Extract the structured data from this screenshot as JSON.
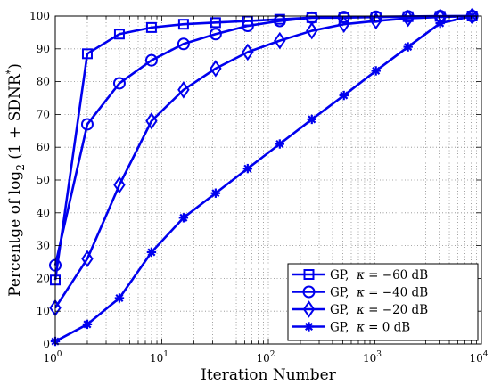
{
  "chart_data": {
    "type": "line",
    "xscale": "log",
    "xlim": [
      1,
      10000
    ],
    "ylim": [
      0,
      100
    ],
    "xlabel": "Iteration Number",
    "ylabel": "Percentge of log2(1 + SDNR*)",
    "ylabel_parts": {
      "prefix": "Percentge of ",
      "log": "log",
      "sub": "2",
      "paren": " (1 + SDNR",
      "star": "*",
      "close": ")"
    },
    "grid": true,
    "grid_style": "dotted",
    "legend_position": "bottom-right",
    "line_color": "#0000ee",
    "x_ticks": [
      {
        "value": 1,
        "base": "10",
        "exp": "0"
      },
      {
        "value": 10,
        "base": "10",
        "exp": "1"
      },
      {
        "value": 100,
        "base": "10",
        "exp": "2"
      },
      {
        "value": 1000,
        "base": "10",
        "exp": "3"
      },
      {
        "value": 10000,
        "base": "10",
        "exp": "4"
      }
    ],
    "y_ticks": [
      "0",
      "10",
      "20",
      "30",
      "40",
      "50",
      "60",
      "70",
      "80",
      "90",
      "100"
    ],
    "x": [
      1,
      2,
      4,
      8,
      16,
      32,
      64,
      128,
      256,
      512,
      1024,
      2048,
      4096,
      8192
    ],
    "series": [
      {
        "name": "GP, κ = −60 dB",
        "legend": {
          "label": "GP,",
          "kappa": "κ",
          "eq": " = −60 dB"
        },
        "marker": "square",
        "values": [
          19.5,
          88.5,
          94.5,
          96.5,
          97.5,
          98,
          98.5,
          99,
          99.5,
          99.5,
          99.7,
          99.8,
          99.9,
          100
        ]
      },
      {
        "name": "GP, κ = −40 dB",
        "legend": {
          "label": "GP,",
          "kappa": "κ",
          "eq": " = −40 dB"
        },
        "marker": "circle",
        "values": [
          24,
          67,
          79.5,
          86.5,
          91.5,
          94.5,
          97,
          98.5,
          99.5,
          99.7,
          99.8,
          99.9,
          100,
          100
        ]
      },
      {
        "name": "GP, κ = −20 dB",
        "legend": {
          "label": "GP,",
          "kappa": "κ",
          "eq": " = −20 dB"
        },
        "marker": "diamond",
        "values": [
          11,
          26,
          48.5,
          68,
          77.5,
          84,
          89,
          92.5,
          95.5,
          97.5,
          98.5,
          99.3,
          99.7,
          100
        ]
      },
      {
        "name": "GP, κ = 0 dB",
        "legend": {
          "label": "GP,",
          "kappa": "κ",
          "eq": " = 0 dB"
        },
        "marker": "asterisk",
        "values": [
          0.8,
          6,
          14,
          28,
          38.5,
          46,
          53.5,
          61,
          68.5,
          75.8,
          83.3,
          90.6,
          97.8,
          100
        ]
      }
    ]
  }
}
